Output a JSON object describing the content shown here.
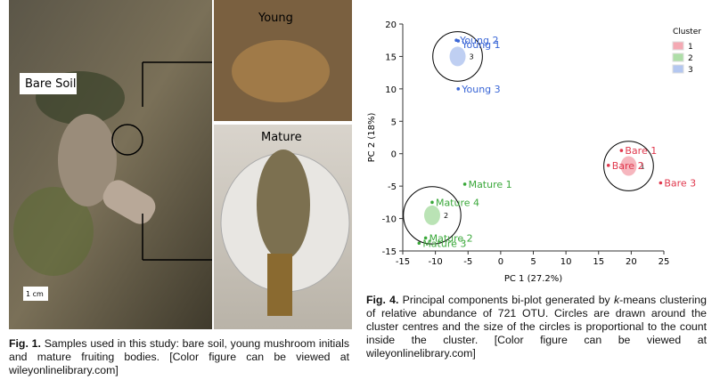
{
  "figure1": {
    "labels": {
      "bare_soil": "Bare Soil",
      "young": "Young",
      "mature": "Mature",
      "scale": "1 cm"
    },
    "caption": {
      "label": "Fig. 1.",
      "text": "Samples used in this study: bare soil, young mushroom initials and mature fruiting bodies. [Color figure can be viewed at wileyonlinelibrary.com]"
    }
  },
  "chart_data": {
    "type": "scatter",
    "xlabel": "PC 1 (27.2%)",
    "ylabel": "PC 2 (18%)",
    "xlim": [
      -15,
      25
    ],
    "ylim": [
      -15,
      20
    ],
    "xticks": [
      -15,
      -10,
      -5,
      0,
      5,
      10,
      15,
      20,
      25
    ],
    "yticks": [
      -15,
      -10,
      -5,
      0,
      5,
      10,
      15,
      20
    ],
    "legend_title": "Cluster",
    "legend": "upper right",
    "series": [
      {
        "name": "1",
        "color": "#f4a9b3",
        "point_color": "#e0384d",
        "labels": [
          "Bare 1",
          "Bare 2",
          "Bare 3"
        ],
        "x": [
          18.5,
          16.5,
          24.5
        ],
        "values": [
          0.5,
          -1.8,
          -4.5
        ],
        "center": [
          19.6,
          -1.9
        ],
        "radius": 3.8
      },
      {
        "name": "2",
        "color": "#aedea8",
        "point_color": "#3aa83a",
        "labels": [
          "Mature 1",
          "Mature 4",
          "Mature 2",
          "Mature 3"
        ],
        "x": [
          -5.5,
          -10.5,
          -11.5,
          -12.5
        ],
        "values": [
          -4.7,
          -7.5,
          -13,
          -13.8
        ],
        "center": [
          -10.5,
          -9.5
        ],
        "radius": 4.4
      },
      {
        "name": "3",
        "color": "#b4c7f0",
        "point_color": "#3a66d6",
        "labels": [
          "Young 2",
          "Young 1",
          "Young 3"
        ],
        "x": [
          -6.8,
          -6.5,
          -6.5
        ],
        "values": [
          17.5,
          17.4,
          10
        ],
        "center": [
          -6.6,
          15
        ],
        "radius": 3.8
      }
    ]
  },
  "figure4": {
    "caption": {
      "label": "Fig. 4.",
      "text_before": "Principal components bi-plot generated by ",
      "italic": "k",
      "text_after": "-means clustering of relative abundance of 721 OTU. Circles are drawn around the cluster centres and the size of the circles is proportional to the count inside the cluster. [Color figure can be viewed at wileyonlinelibrary.com]"
    }
  }
}
